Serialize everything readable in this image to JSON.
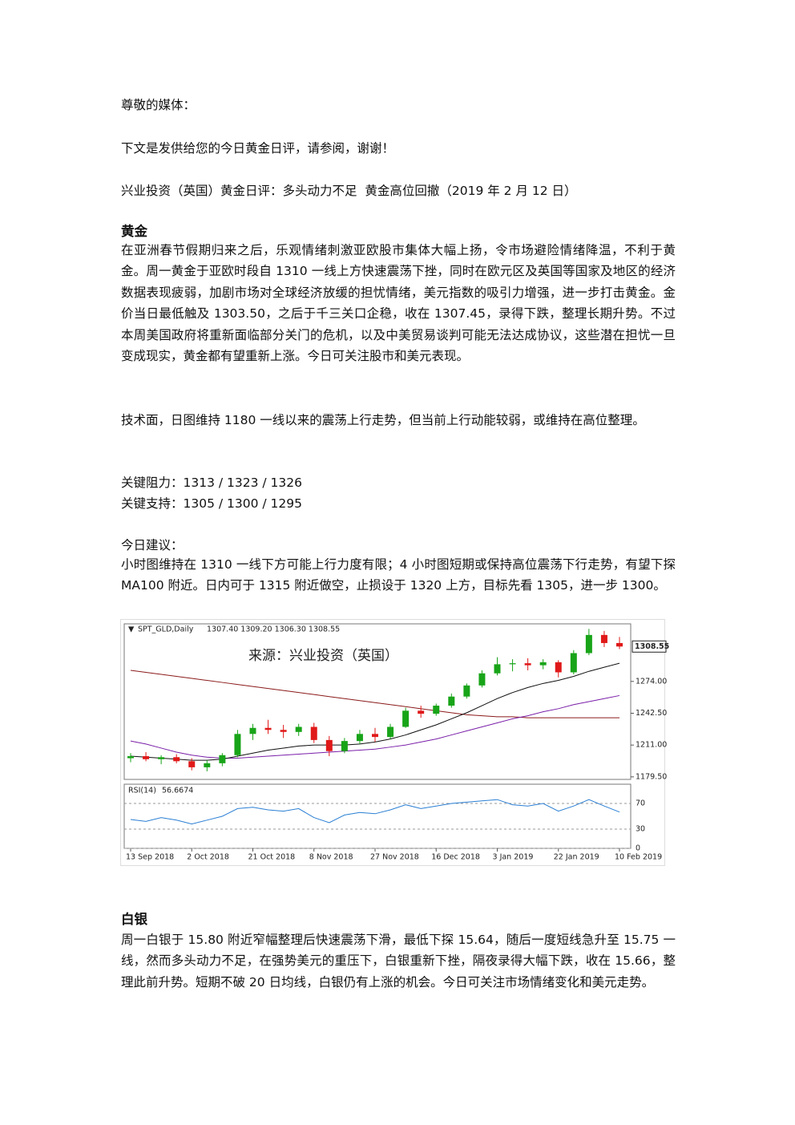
{
  "doc": {
    "greeting": "尊敬的媒体：",
    "intro": "下文是发供给您的今日黄金日评，请参阅，谢谢！",
    "headline": "兴业投资（英国）黄金日评：多头动力不足  黄金高位回撤（2019 年 2 月 12 日）",
    "gold": {
      "heading": "黄金",
      "paragraph": "在亚洲春节假期归来之后，乐观情绪刺激亚欧股市集体大幅上扬，令市场避险情绪降温，不利于黄金。周一黄金于亚欧时段自 1310 一线上方快速震荡下挫，同时在欧元区及英国等国家及地区的经济数据表现疲弱，加剧市场对全球经济放缓的担忧情绪，美元指数的吸引力增强，进一步打击黄金。金价当日最低触及 1303.50，之后于千三关口企稳，收在 1307.45，录得下跌，整理长期升势。不过本周美国政府将重新面临部分关门的危机，以及中美贸易谈判可能无法达成协议，这些潜在担忧一旦变成现实，黄金都有望重新上涨。今日可关注股市和美元表现。",
      "technical": "技术面，日图维持 1180 一线以来的震荡上行走势，但当前上行动能较弱，或维持在高位整理。",
      "resistance": "关键阻力：1313 / 1323 / 1326",
      "support": "关键支持：1305 / 1300 / 1295",
      "advice_heading": "今日建议：",
      "advice": "小时图维持在 1310 一线下方可能上行力度有限；4 小时图短期或保持高位震荡下行走势，有望下探 MA100 附近。日内可于 1315 附近做空，止损设于 1320 上方，目标先看 1305，进一步 1300。"
    },
    "silver": {
      "heading": "白银",
      "paragraph": "周一白银于 15.80 附近窄幅整理后快速震荡下滑，最低下探 15.64，随后一度短线急升至 15.75 一线，然而多头动力不足，在强势美元的重压下，白银重新下挫，隔夜录得大幅下跌，收在 15.66，整理此前升势。短期不破 20 日均线，白银仍有上涨的机会。今日可关注市场情绪变化和美元走势。"
    }
  },
  "chart_data": {
    "type": "candlestick",
    "title": "SPT_GLD,Daily",
    "ohlc_header": "1307.40 1309.20 1306.30 1308.55",
    "watermark": "来源：兴业投资（英国）",
    "x": [
      "13 Sep 2018",
      null,
      null,
      null,
      "2 Oct 2018",
      null,
      null,
      null,
      "21 Oct 2018",
      null,
      null,
      null,
      "8 Nov 2018",
      null,
      null,
      null,
      "27 Nov 2018",
      null,
      null,
      null,
      "16 Dec 2018",
      null,
      null,
      null,
      "3 Jan 2019",
      null,
      null,
      null,
      "22 Jan 2019",
      null,
      null,
      null,
      "10 Feb 2019"
    ],
    "open": [
      1198,
      1200,
      1197,
      1199,
      1195,
      1189,
      1193,
      1201,
      1222,
      1228,
      1226,
      1224,
      1229,
      1216,
      1205,
      1215,
      1222,
      1219,
      1229,
      1245,
      1242,
      1250,
      1259,
      1270,
      1282,
      1291,
      1292,
      1290,
      1293,
      1283,
      1302,
      1320,
      1312
    ],
    "high": [
      1203,
      1204,
      1201,
      1202,
      1198,
      1196,
      1203,
      1226,
      1232,
      1236,
      1231,
      1232,
      1233,
      1220,
      1218,
      1226,
      1228,
      1232,
      1248,
      1250,
      1252,
      1262,
      1272,
      1285,
      1298,
      1296,
      1297,
      1296,
      1295,
      1305,
      1326,
      1324,
      1318
    ],
    "low": [
      1194,
      1195,
      1192,
      1193,
      1186,
      1185,
      1190,
      1199,
      1216,
      1222,
      1218,
      1220,
      1213,
      1200,
      1203,
      1212,
      1214,
      1217,
      1228,
      1238,
      1240,
      1248,
      1257,
      1268,
      1280,
      1284,
      1285,
      1286,
      1278,
      1281,
      1300,
      1308,
      1306
    ],
    "close": [
      1200,
      1197,
      1199,
      1195,
      1189,
      1193,
      1201,
      1222,
      1228,
      1226,
      1224,
      1229,
      1216,
      1205,
      1215,
      1222,
      1219,
      1229,
      1245,
      1242,
      1250,
      1259,
      1270,
      1282,
      1291,
      1292,
      1290,
      1293,
      1283,
      1302,
      1320,
      1312,
      1308.55
    ],
    "up_color": "#18a418",
    "down_color": "#e01818",
    "ma_lines": [
      {
        "color": "#8b1a1a",
        "values": [
          1285,
          1283,
          1281,
          1279,
          1277,
          1275,
          1273,
          1271,
          1269,
          1267,
          1265,
          1263,
          1261,
          1259,
          1257,
          1255,
          1253,
          1251,
          1249,
          1247,
          1245,
          1243,
          1241,
          1240,
          1239,
          1239,
          1238,
          1238,
          1238,
          1238,
          1238,
          1238,
          1238
        ]
      },
      {
        "color": "#7a1fa8",
        "values": [
          1215,
          1212,
          1208,
          1204,
          1201,
          1199,
          1198,
          1198,
          1199,
          1200,
          1201,
          1202,
          1203,
          1204,
          1205,
          1206,
          1207,
          1209,
          1211,
          1214,
          1217,
          1221,
          1225,
          1229,
          1233,
          1237,
          1240,
          1244,
          1247,
          1251,
          1254,
          1257,
          1260
        ]
      },
      {
        "color": "#101010",
        "values": [
          1200,
          1199,
          1198,
          1197,
          1196,
          1196,
          1197,
          1200,
          1203,
          1206,
          1208,
          1210,
          1211,
          1211,
          1211,
          1212,
          1214,
          1217,
          1221,
          1226,
          1231,
          1237,
          1243,
          1250,
          1257,
          1263,
          1268,
          1272,
          1275,
          1279,
          1284,
          1288,
          1292
        ]
      }
    ],
    "ylim": [
      1177,
      1331
    ],
    "yticks": [
      {
        "value": 1179.5,
        "label": "1179.50"
      },
      {
        "value": 1211,
        "label": "1211.00"
      },
      {
        "value": 1242.5,
        "label": "1242.50"
      },
      {
        "value": 1274,
        "label": "1274.00"
      }
    ],
    "last_price": {
      "value": 1308.55,
      "label": "1308.55"
    },
    "rsi": {
      "title": "RSI(14)",
      "last": 56.6674,
      "color": "#2a7fd4",
      "values": [
        45,
        42,
        48,
        44,
        38,
        44,
        50,
        62,
        64,
        60,
        58,
        62,
        48,
        40,
        52,
        56,
        54,
        60,
        68,
        62,
        66,
        70,
        72,
        74,
        76,
        68,
        66,
        70,
        58,
        66,
        76,
        66,
        56.6674
      ],
      "ylim": [
        0,
        100
      ],
      "yticks": [
        70,
        30,
        0
      ]
    }
  }
}
